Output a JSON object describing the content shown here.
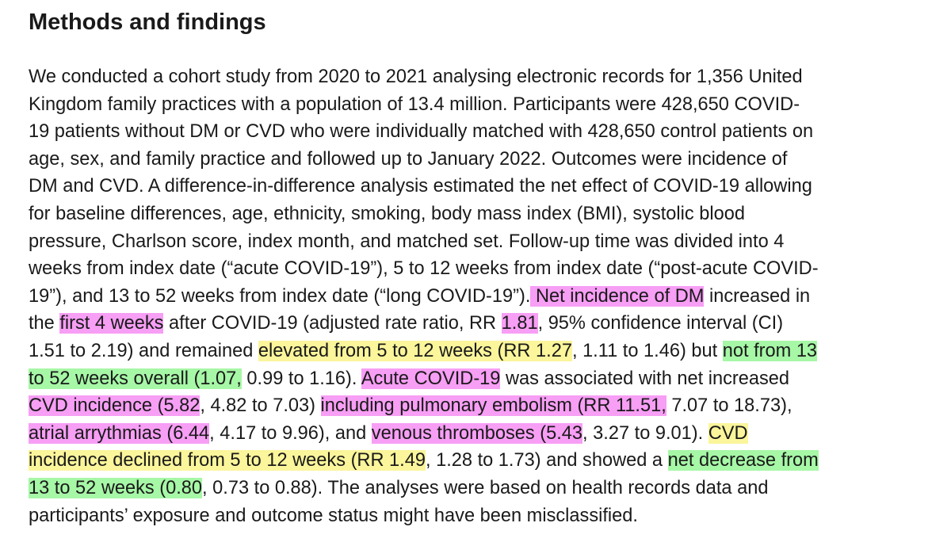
{
  "heading": "Methods and findings",
  "highlight_colors": {
    "pink": "#f79ef5",
    "yellow": "#fbf59b",
    "green": "#a6f7a6"
  },
  "lines": [
    [
      {
        "t": "We conducted a cohort study from 2020 to 2021 analysing electronic records for 1,356 United"
      }
    ],
    [
      {
        "t": "Kingdom family practices with a population of 13.4 million. Participants were 428,650 COVID-"
      }
    ],
    [
      {
        "t": "19 patients without DM or CVD who were individually matched with 428,650 control patients on"
      }
    ],
    [
      {
        "t": "age, sex, and family practice and followed up to January 2022. Outcomes were incidence of"
      }
    ],
    [
      {
        "t": "DM and CVD. A difference-in-difference analysis estimated the net effect of COVID-19 allowing"
      }
    ],
    [
      {
        "t": "for baseline differences, age, ethnicity, smoking, body mass index (BMI), systolic blood"
      }
    ],
    [
      {
        "t": "pressure, Charlson score, index month, and matched set. Follow-up time was divided into 4"
      }
    ],
    [
      {
        "t": "weeks from index date (“acute COVID-19”), 5 to 12 weeks from index date (“post-acute COVID-"
      }
    ],
    [
      {
        "t": "19”), and 13 to 52 weeks from index date (“long COVID-19”)."
      },
      {
        "t": " Net incidence of DM",
        "h": "pink"
      },
      {
        "t": " increased in"
      }
    ],
    [
      {
        "t": "the "
      },
      {
        "t": "first 4 weeks",
        "h": "pink"
      },
      {
        "t": " after COVID-19 (adjusted rate ratio, RR "
      },
      {
        "t": "1.81",
        "h": "pink"
      },
      {
        "t": ", 95% confidence interval (CI)"
      }
    ],
    [
      {
        "t": "1.51 to 2.19) and remained "
      },
      {
        "t": "elevated from 5 to 12 weeks (RR 1.27",
        "h": "yellow"
      },
      {
        "t": ", 1.11 to 1.46) but "
      },
      {
        "t": "not from 13",
        "h": "green"
      }
    ],
    [
      {
        "t": "to 52 weeks overall (1.07,",
        "h": "green"
      },
      {
        "t": " 0.99 to 1.16). "
      },
      {
        "t": "Acute COVID-19",
        "h": "pink"
      },
      {
        "t": " was associated with net increased"
      }
    ],
    [
      {
        "t": "CVD incidence (5.82",
        "h": "pink"
      },
      {
        "t": ", 4.82 to 7.03) "
      },
      {
        "t": "including pulmonary embolism (RR 11.51,",
        "h": "pink"
      },
      {
        "t": " 7.07 to 18.73),"
      }
    ],
    [
      {
        "t": "atrial arrythmias (6.44",
        "h": "pink"
      },
      {
        "t": ", 4.17 to 9.96), and "
      },
      {
        "t": "venous thromboses (5.43",
        "h": "pink"
      },
      {
        "t": ", 3.27 to 9.01). "
      },
      {
        "t": "CVD",
        "h": "yellow"
      }
    ],
    [
      {
        "t": "incidence declined from 5 to 12 weeks (RR 1.49",
        "h": "yellow"
      },
      {
        "t": ", 1.28 to 1.73) and showed a "
      },
      {
        "t": "net decrease from",
        "h": "green"
      }
    ],
    [
      {
        "t": "13 to 52 weeks (0.80",
        "h": "green"
      },
      {
        "t": ", 0.73 to 0.88). The analyses were based on health records data and"
      }
    ],
    [
      {
        "t": "participants’ exposure and outcome status might have been misclassified."
      }
    ]
  ]
}
